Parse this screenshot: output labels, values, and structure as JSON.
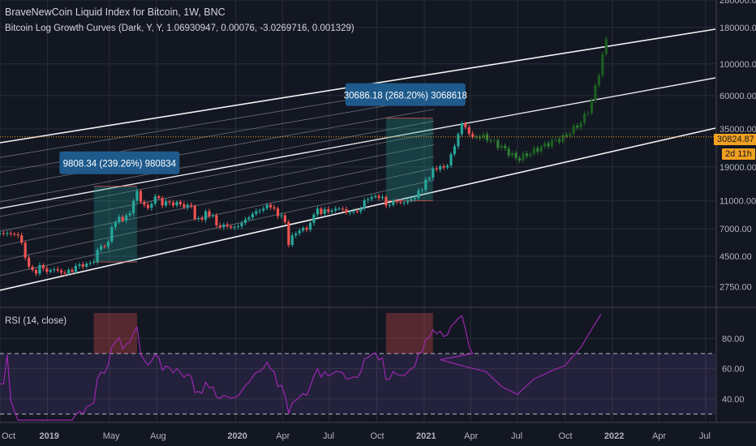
{
  "header": {
    "title": "BraveNewCoin Liquid Index for Bitcoin, 1W, BNC",
    "indicator": "Bitcoin Log Growth Curves (Dark, Y, Y, 1.06930947, 0.00076, -3.0269716, 0.001329)"
  },
  "rsi_panel": {
    "label": "RSI (14, close)"
  },
  "last_price": {
    "value": "30824.87",
    "countdown": "2d 11h"
  },
  "measurements": [
    {
      "text": "9808.34 (239.26%) 980834",
      "from_date": "2019-04-01",
      "to_date": "2019-06-24",
      "low": 4100,
      "high": 13900
    },
    {
      "text": "30686.18 (268.20%) 3068618",
      "from_date": "2020-10-19",
      "to_date": "2021-01-18",
      "low": 11000,
      "high": 41700
    }
  ],
  "colors": {
    "background": "#131722",
    "grid": "#2a2e39",
    "up": "#26a69a",
    "down": "#ef5350",
    "rsi_line": "#9c27b0",
    "rsi_band": "#7e57c2",
    "price_line": "#f0a020",
    "curve": "#ffffff",
    "measure_box_up": "#26a69a",
    "measure_label": "#1e5a8c"
  },
  "chart_data": [
    {
      "type": "candlestick",
      "title": "BraveNewCoin Liquid Index for Bitcoin, 1W, BNC",
      "y_scale": "log",
      "ylim": [
        2000,
        280000
      ],
      "y_ticks": [
        "280000.00",
        "180000.00",
        "100000.00",
        "60000.00",
        "35000.00",
        "19000.00",
        "11000.00",
        "7000.00",
        "4500.00",
        "2750.00"
      ],
      "y_tick_values": [
        280000,
        180000,
        100000,
        60000,
        35000,
        19000,
        11000,
        7000,
        4500,
        2750
      ],
      "x_ticks": [
        "Oct",
        "2019",
        "May",
        "Aug",
        "2020",
        "Apr",
        "Jul",
        "Oct",
        "2021",
        "Apr",
        "Jul",
        "Oct",
        "2022",
        "Apr",
        "Jul"
      ],
      "x_tick_dates": [
        "2018-10-01",
        "2019-01-01",
        "2019-05-01",
        "2019-08-01",
        "2020-01-01",
        "2020-04-01",
        "2020-07-01",
        "2020-10-01",
        "2021-01-01",
        "2021-04-01",
        "2021-07-01",
        "2021-10-01",
        "2022-01-01",
        "2022-04-01",
        "2022-07-01"
      ],
      "x_range": [
        "2018-10-01",
        "2022-07-20"
      ],
      "weekly_close": [
        6500,
        6520,
        6480,
        6550,
        6450,
        6400,
        6300,
        5600,
        4400,
        3800,
        3600,
        3400,
        3900,
        3700,
        3500,
        3600,
        3650,
        3580,
        3450,
        3400,
        3620,
        3500,
        3850,
        3950,
        3800,
        4000,
        4050,
        4100,
        5000,
        5300,
        5250,
        5700,
        7200,
        7800,
        8500,
        8000,
        8700,
        9000,
        11000,
        12900,
        10800,
        10300,
        9800,
        10500,
        11800,
        11500,
        10200,
        10900,
        10700,
        10200,
        10800,
        10400,
        9900,
        10300,
        10100,
        8200,
        8300,
        8100,
        9300,
        8600,
        8700,
        7400,
        7200,
        7500,
        7300,
        7150,
        7200,
        7300,
        7700,
        8150,
        8400,
        8900,
        9300,
        9400,
        9700,
        10300,
        9900,
        9700,
        8600,
        8700,
        7800,
        5400,
        6300,
        6500,
        6800,
        7100,
        6900,
        7700,
        8800,
        9700,
        8900,
        9600,
        9200,
        9400,
        9700,
        9700,
        9600,
        9100,
        9150,
        9300,
        9250,
        9700,
        11100,
        11300,
        11700,
        11900,
        11500,
        11700,
        10200,
        10300,
        11000,
        10800,
        10700,
        10700,
        11000,
        11300,
        11500,
        13000,
        13100,
        15500,
        15900,
        18500,
        18200,
        19200,
        18800,
        19400,
        23300,
        26500,
        32200,
        38300,
        36000,
        32400,
        30825
      ],
      "projected": {
        "start_date": "2021-02-01",
        "note_anchor_values": [
          [
            "2021-02-01",
            31500
          ],
          [
            "2021-03-15",
            32500
          ],
          [
            "2021-05-01",
            30500
          ],
          [
            "2021-06-01",
            26000
          ],
          [
            "2021-07-01",
            21500
          ],
          [
            "2021-08-01",
            24500
          ],
          [
            "2021-09-01",
            28000
          ],
          [
            "2021-10-01",
            31000
          ],
          [
            "2021-11-01",
            39000
          ],
          [
            "2021-11-20",
            51000
          ],
          [
            "2021-12-10",
            100000
          ],
          [
            "2021-12-20",
            150000
          ]
        ]
      }
    },
    {
      "type": "line",
      "title": "RSI (14, close)",
      "ylim": [
        25,
        100
      ],
      "y_ticks": [
        "80.00",
        "60.00",
        "40.00"
      ],
      "y_tick_values": [
        80,
        60,
        40
      ],
      "bands": [
        70,
        30
      ],
      "weekly_values_source": "computed from weekly_close",
      "projected_anchor_values": [
        [
          "2021-02-01",
          66
        ],
        [
          "2021-03-15",
          62
        ],
        [
          "2021-05-01",
          58
        ],
        [
          "2021-06-01",
          48
        ],
        [
          "2021-07-01",
          43
        ],
        [
          "2021-08-01",
          53
        ],
        [
          "2021-09-01",
          58
        ],
        [
          "2021-10-01",
          62
        ],
        [
          "2021-11-01",
          74
        ],
        [
          "2021-11-20",
          85
        ],
        [
          "2021-12-10",
          96
        ]
      ]
    }
  ]
}
